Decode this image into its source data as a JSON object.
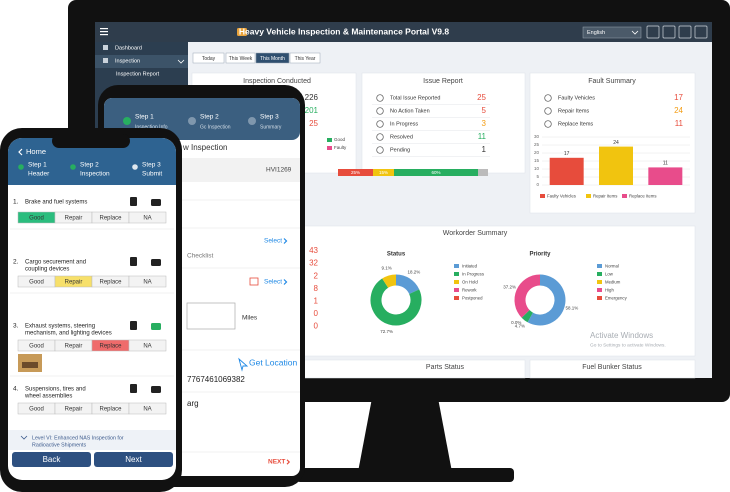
{
  "monitor": {
    "title": "Heavy Vehicle Inspection & Maintenance Portal V9.8",
    "language": "English",
    "sidebar": [
      "Dashboard",
      "Inspection",
      "Inspection Report"
    ],
    "tabs": [
      "Today",
      "This Week",
      "This Month",
      "This Year"
    ],
    "active_tab": 2,
    "inspection_conducted": {
      "title": "Inspection Conducted",
      "values": [
        226,
        201,
        25
      ],
      "value_colors": [
        "#333333",
        "#27ae60",
        "#e74c3c"
      ],
      "legend": [
        "Good",
        "Faulty"
      ],
      "legend_colors": [
        "#27ae60",
        "#e84c8b"
      ],
      "progress": {
        "values": [
          25,
          15,
          60
        ],
        "value_labels": [
          "25%",
          "15%",
          "60%"
        ],
        "colors": [
          "#e74c3c",
          "#f1c40f",
          "#27ae60"
        ]
      }
    },
    "issue_report": {
      "title": "Issue Report",
      "rows": [
        {
          "label": "Total Issue Reported",
          "value": 25,
          "color": "#e74c3c"
        },
        {
          "label": "No Action Taken",
          "value": 5,
          "color": "#e74c3c"
        },
        {
          "label": "In Progress",
          "value": 3,
          "color": "#f39c12"
        },
        {
          "label": "Resolved",
          "value": 11,
          "color": "#27ae60"
        },
        {
          "label": "Pending",
          "value": 1,
          "color": "#333333"
        }
      ]
    },
    "fault_summary": {
      "title": "Fault Summary",
      "rows": [
        {
          "label": "Faulty Vehicles",
          "value": 17,
          "color": "#e74c3c"
        },
        {
          "label": "Repair Items",
          "value": 24,
          "color": "#f39c12"
        },
        {
          "label": "Replace Items",
          "value": 11,
          "color": "#e74c3c"
        }
      ],
      "chart": {
        "type": "bar",
        "categories": [
          "Faulty Vehicles",
          "Repair Items",
          "Replace Items"
        ],
        "values": [
          17,
          24,
          11
        ],
        "colors": [
          "#e74c3c",
          "#f1c40f",
          "#e84c8b"
        ],
        "ylim": [
          0,
          30
        ],
        "yticks": [
          0,
          5,
          10,
          15,
          20,
          25,
          30
        ],
        "grid": true
      }
    },
    "side_values": {
      "values": [
        43,
        32,
        2,
        8,
        1,
        0,
        0
      ],
      "color": "#e74c3c"
    },
    "workorder_summary": {
      "title": "Workorder Summary",
      "charts": [
        {
          "type": "pie",
          "title": "Status",
          "categories": [
            "Initiated",
            "In Progress",
            "On Hold",
            "Rework",
            "Postponed"
          ],
          "values": [
            18.2,
            72.7,
            9.1,
            0,
            0
          ],
          "value_labels": [
            "18.2%",
            "72.7%",
            "9.1%",
            null,
            null
          ],
          "colors": [
            "#5b9bd5",
            "#27ae60",
            "#f1c40f",
            "#e84c8b",
            "#e74c3c"
          ]
        },
        {
          "type": "pie",
          "title": "Priority",
          "categories": [
            "Normal",
            "Low",
            "Medium",
            "High",
            "Emergency"
          ],
          "values": [
            58.1,
            4.7,
            0.0,
            37.2,
            0
          ],
          "value_labels": [
            "58.1%",
            "4.7%",
            "0.0%",
            "37.2%",
            null
          ],
          "colors": [
            "#5b9bd5",
            "#27ae60",
            "#f1c40f",
            "#e84c8b",
            "#e74c3c"
          ]
        }
      ]
    },
    "bottom_cards": [
      "Parts Status",
      "Fuel Bunker Status"
    ],
    "watermark": [
      "Activate Windows",
      "Go to Settings to activate Windows."
    ]
  },
  "tablet": {
    "steps": [
      {
        "step": "Step 1",
        "label": "Inspection Info"
      },
      {
        "step": "Step 2",
        "label": "Gc Inspection"
      },
      {
        "step": "Step 3",
        "label": "Summary"
      }
    ],
    "heading": "w Inspection",
    "vehicle_id": "HVI1269",
    "select": "Select",
    "checklist": "Checklist",
    "unit": "Miles",
    "location": "Get Location",
    "phone_number": "7767461069382",
    "name_fragment": "arg",
    "next": "NEXT"
  },
  "phone": {
    "back_link": "Home",
    "steps": [
      {
        "step": "Step 1",
        "label": "Header"
      },
      {
        "step": "Step 2",
        "label": "Inspection"
      },
      {
        "step": "Step 3",
        "label": "Submit"
      }
    ],
    "options": [
      "Good",
      "Repair",
      "Replace",
      "NA"
    ],
    "items": [
      {
        "number": "1.",
        "label": [
          "Brake and fuel systems"
        ],
        "selected": 0
      },
      {
        "number": "2.",
        "label": [
          "Cargo securement and",
          "coupling devices"
        ],
        "selected": 1
      },
      {
        "number": "3.",
        "label": [
          "Exhaust systems, steering",
          "mechanism, and lighting devices"
        ],
        "selected": 2
      },
      {
        "number": "4.",
        "label": [
          "Suspensions, tires and",
          "wheel assemblies"
        ],
        "selected": null
      }
    ],
    "footer": [
      "Level VI: Enhanced NAS Inspection for",
      "Radioactive Shipments"
    ],
    "buttons": [
      "Back",
      "Next"
    ]
  }
}
